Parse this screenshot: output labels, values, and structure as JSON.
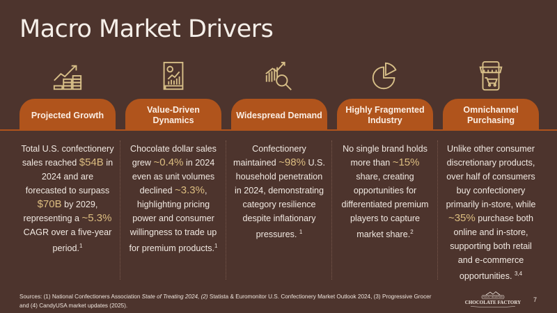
{
  "title": "Macro Market Drivers",
  "colors": {
    "background": "#4d342d",
    "accent": "#b0541c",
    "highlight": "#dcbd80",
    "icon": "#d8bf88"
  },
  "columns": [
    {
      "icon": "growth-chart-coins-icon",
      "header": "Projected Growth",
      "body": [
        {
          "t": "Total U.S. confectionery sales reached "
        },
        {
          "t": "$54B",
          "k": "hl"
        },
        {
          "t": " in 2024 and are forecasted to surpass "
        },
        {
          "t": "$70B",
          "k": "hl"
        },
        {
          "t": " by 2029, representing a "
        },
        {
          "t": "~5.3%",
          "k": "hl"
        },
        {
          "t": " CAGR over a five-year period."
        },
        {
          "t": "1",
          "k": "sup"
        }
      ]
    },
    {
      "icon": "report-document-chart-icon",
      "header": "Value-Driven Dynamics",
      "body": [
        {
          "t": "Chocolate dollar sales grew "
        },
        {
          "t": "~0.4%",
          "k": "hl"
        },
        {
          "t": " in 2024 even as unit volumes declined "
        },
        {
          "t": "~3.3%",
          "k": "hl"
        },
        {
          "t": ", highlighting pricing power and consumer willingness to trade up for premium products."
        },
        {
          "t": "1",
          "k": "sup"
        }
      ]
    },
    {
      "icon": "chart-magnifier-icon",
      "header": "Widespread Demand",
      "body": [
        {
          "t": "Confectionery maintained "
        },
        {
          "t": "~98%",
          "k": "hl"
        },
        {
          "t": " U.S. household penetration in 2024, demonstrating category resilience despite inflationary pressures. "
        },
        {
          "t": "1",
          "k": "sup"
        }
      ]
    },
    {
      "icon": "pie-chart-icon",
      "header": "Highly Fragmented Industry",
      "body": [
        {
          "t": "No single brand holds more than "
        },
        {
          "t": "~15%",
          "k": "hl"
        },
        {
          "t": " share, creating opportunities for differentiated premium players to capture market share."
        },
        {
          "t": "2",
          "k": "sup"
        }
      ]
    },
    {
      "icon": "storefront-phone-cart-icon",
      "header": "Omnichannel Purchasing",
      "body": [
        {
          "t": "Unlike other consumer discretionary products, over half of consumers buy confectionery primarily in-store, while "
        },
        {
          "t": "~35%",
          "k": "hl"
        },
        {
          "t": " purchase both online and in-store, supporting both retail and e-commerce opportunities. "
        },
        {
          "t": "3,4",
          "k": "sup"
        }
      ]
    }
  ],
  "footer": {
    "sources_prefix": "Sources: (1) National Confectioners Association ",
    "sources_italic_1": "State of Treating 2024,",
    "sources_mid": " ",
    "sources_italic_2": "(2)",
    "sources_rest": " Statista & Euromonitor U.S. Confectionery Market Outlook 2024, (3) Progressive Grocer and (4) CandyUSA market updates (2025).",
    "logo_text_top": "ROCKY MOUNTAIN",
    "logo_text_main": "CHOCOLATE FACTORY",
    "page_number": "7"
  }
}
